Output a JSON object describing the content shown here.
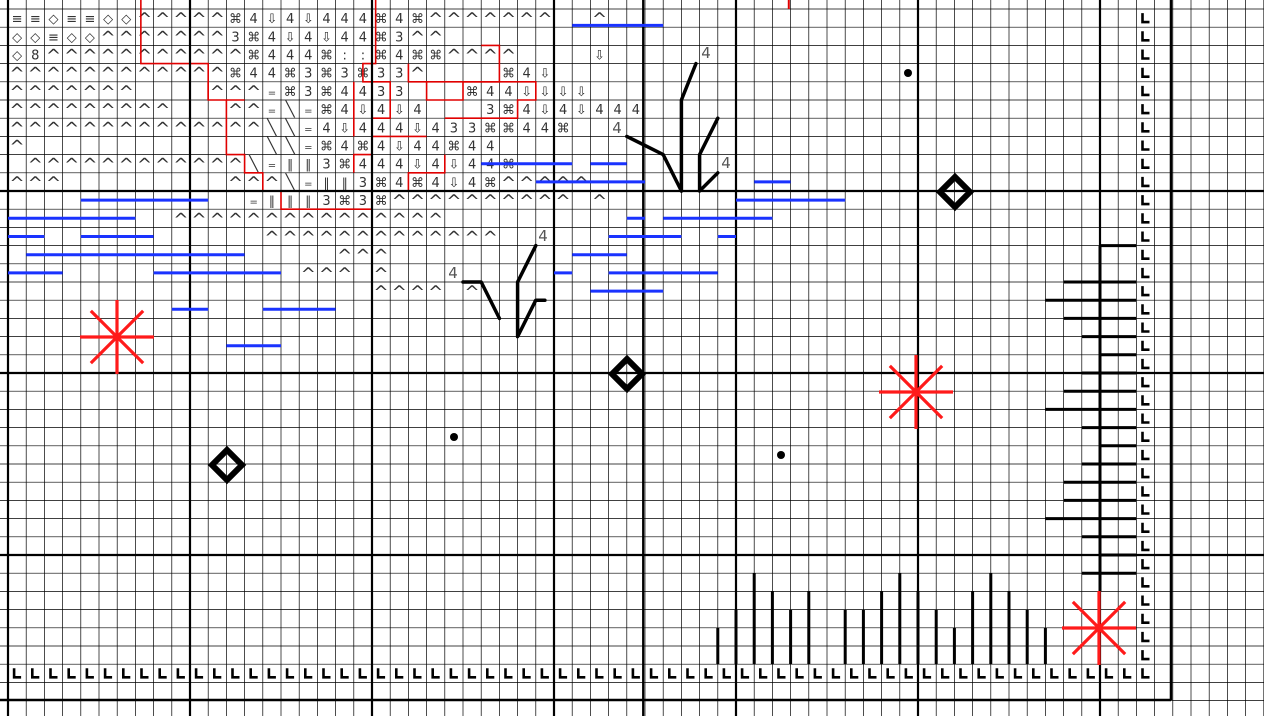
{
  "pattern": {
    "grid": {
      "cols": 70,
      "rows": 39,
      "major_every": 10,
      "colors": {
        "minor": "#000000",
        "major": "#000000",
        "background": "#ffffff"
      }
    },
    "palette": {
      "backstitch_blue": "#1a33ff",
      "backstitch_black": "#000000",
      "outline_red": "#e00000",
      "star_red": "#ff1a1a",
      "symbol": "#333333"
    },
    "symbol_rows": [
      "≡≡◇≡≡◇◇^^^^^⌘4⇩4⇩444⌘4⌘^^^^^^^__^",
      "◇◇≡◇◇^^^^^^^3⌘4⇩4⇩44⌘3^^",
      "◇8^^^^^^^^^^^⌘444⌘::⌘4⌘⌘^^^^____⇩",
      "^^^^^^^^^^^^⌘44⌘3⌘3⌘33^____⌘4⇩",
      "^^^^^^^____^^^=⌘3⌘4433___⌘44⇩⇩⇩⇩",
      "^^^^^^^^^___^^=\\=⌘4⇩4⇩4___3⌘4⇩4⇩444",
      "^^^^^^^^^^^^^^\\\\=4⇩444⇩433⌘⌘44⌘",
      "^_____________\\\\=⌘4⌘4⇩44⌘44",
      "_^^^^^^^^^^^^\\=ll3⌘444⇩4⇩44⌘",
      "^^^_________^^^\\=ll3⌘4⌘4⇩4⌘^^^^^",
      "_____________=lll3⌘3⌘^^^^^^^^^^_^",
      "_________^^^^^^^^^^^^^^^",
      "______________^^^^^^^^^^^^^",
      "__________________^^^",
      "________________^^^_^",
      "____________________^^^^_^"
    ],
    "labels": [
      "4",
      "4",
      "4",
      "4",
      "4"
    ],
    "border_symbol": "L"
  }
}
